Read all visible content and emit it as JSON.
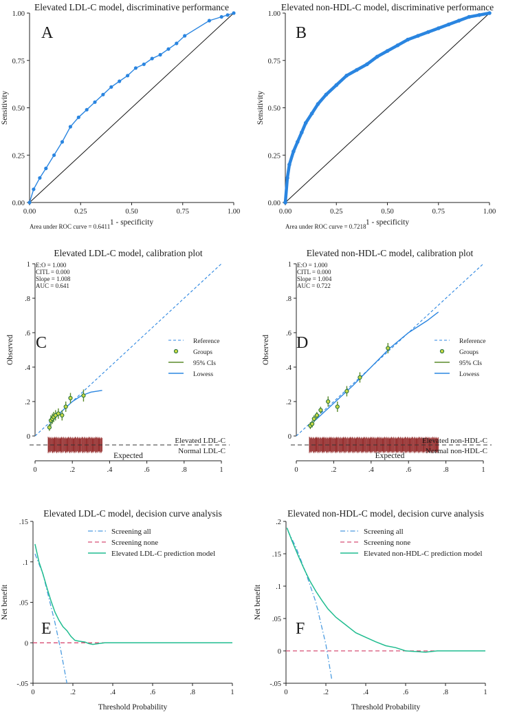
{
  "chart_data": [
    {
      "type": "line",
      "panel_letter": "A",
      "title": "Elevated LDL-C model, discriminative performance",
      "xlabel": "1 - specificity",
      "ylabel": "Sensitivity",
      "xlim": [
        0,
        1
      ],
      "ylim": [
        0,
        1
      ],
      "xticks": [
        "0.00",
        "0.25",
        "0.50",
        "0.75",
        "1.00"
      ],
      "yticks": [
        "0.00",
        "0.25",
        "0.50",
        "0.75",
        "1.00"
      ],
      "footnote": "Area under ROC curve = 0.6411",
      "color": "#2a85e0",
      "series": [
        {
          "name": "ROC curve",
          "x": [
            0,
            0.02,
            0.05,
            0.08,
            0.12,
            0.16,
            0.2,
            0.24,
            0.28,
            0.32,
            0.36,
            0.4,
            0.44,
            0.48,
            0.52,
            0.56,
            0.6,
            0.64,
            0.68,
            0.72,
            0.76,
            0.88,
            0.94,
            0.97,
            1
          ],
          "y": [
            0,
            0.07,
            0.13,
            0.18,
            0.25,
            0.32,
            0.4,
            0.45,
            0.49,
            0.53,
            0.57,
            0.61,
            0.64,
            0.67,
            0.71,
            0.73,
            0.76,
            0.78,
            0.81,
            0.84,
            0.88,
            0.96,
            0.98,
            0.99,
            1
          ]
        },
        {
          "name": "Reference",
          "x": [
            0,
            1
          ],
          "y": [
            0,
            1
          ]
        }
      ]
    },
    {
      "type": "line",
      "panel_letter": "B",
      "title": "Elevated non-HDL-C model, discriminative performance",
      "xlabel": "1 - specificity",
      "ylabel": "Sensitivity",
      "xlim": [
        0,
        1
      ],
      "ylim": [
        0,
        1
      ],
      "xticks": [
        "0.00",
        "0.25",
        "0.50",
        "0.75",
        "1.00"
      ],
      "yticks": [
        "0.00",
        "0.25",
        "0.50",
        "0.75",
        "1.00"
      ],
      "footnote": "Area under ROC curve = 0.7218",
      "color": "#2a85e0",
      "series": [
        {
          "name": "ROC curve",
          "x": [
            0,
            0.01,
            0.02,
            0.04,
            0.06,
            0.08,
            0.1,
            0.13,
            0.16,
            0.2,
            0.25,
            0.3,
            0.35,
            0.4,
            0.45,
            0.5,
            0.55,
            0.6,
            0.65,
            0.7,
            0.75,
            0.8,
            0.85,
            0.9,
            0.95,
            1
          ],
          "y": [
            0,
            0.13,
            0.2,
            0.27,
            0.32,
            0.37,
            0.42,
            0.47,
            0.52,
            0.57,
            0.62,
            0.67,
            0.7,
            0.73,
            0.77,
            0.8,
            0.83,
            0.86,
            0.88,
            0.9,
            0.92,
            0.94,
            0.96,
            0.98,
            0.99,
            1
          ]
        },
        {
          "name": "Reference",
          "x": [
            0,
            1
          ],
          "y": [
            0,
            1
          ]
        }
      ]
    },
    {
      "type": "scatter",
      "panel_letter": "C",
      "title": "Elevated LDL-C model, calibration plot",
      "xlabel": "Expected",
      "ylabel": "Observed",
      "xlim": [
        0,
        1
      ],
      "ylim": [
        0,
        1
      ],
      "xticks": [
        "0",
        ".2",
        ".4",
        ".6",
        ".8",
        "1"
      ],
      "yticks": [
        "0",
        ".2",
        ".4",
        ".6",
        ".8",
        "1"
      ],
      "stats": [
        "E:O = 1.000",
        "CITL = 0.000",
        "Slope = 1.008",
        "AUC = 0.641"
      ],
      "legend": [
        "Reference",
        "Groups",
        "95% CIs",
        "Lowess"
      ],
      "rug_labels": [
        "Elevated LDL-C",
        "Normal LDL-C"
      ],
      "rug_range": [
        0.07,
        0.36
      ],
      "groups": {
        "x": [
          0.077,
          0.085,
          0.093,
          0.1,
          0.11,
          0.125,
          0.145,
          0.165,
          0.19,
          0.26
        ],
        "y": [
          0.05,
          0.09,
          0.1,
          0.11,
          0.12,
          0.13,
          0.12,
          0.17,
          0.22,
          0.235
        ],
        "ci_low": [
          0.03,
          0.06,
          0.07,
          0.08,
          0.09,
          0.1,
          0.09,
          0.14,
          0.19,
          0.2
        ],
        "ci_high": [
          0.07,
          0.12,
          0.13,
          0.14,
          0.15,
          0.16,
          0.15,
          0.2,
          0.25,
          0.27
        ]
      },
      "series": [
        {
          "name": "Reference",
          "x": [
            0,
            1
          ],
          "y": [
            0,
            1
          ]
        },
        {
          "name": "Lowess",
          "x": [
            0.075,
            0.1,
            0.13,
            0.16,
            0.2,
            0.25,
            0.3,
            0.36
          ],
          "y": [
            0.06,
            0.095,
            0.13,
            0.16,
            0.2,
            0.235,
            0.255,
            0.265
          ]
        }
      ]
    },
    {
      "type": "scatter",
      "panel_letter": "D",
      "title": "Elevated non-HDL-C model, calibration plot",
      "xlabel": "Expected",
      "ylabel": "Observed",
      "xlim": [
        0,
        1
      ],
      "ylim": [
        0,
        1
      ],
      "xticks": [
        "0",
        ".2",
        ".4",
        ".6",
        ".8",
        "1"
      ],
      "yticks": [
        "0",
        ".2",
        ".4",
        ".6",
        ".8",
        "1"
      ],
      "stats": [
        "E:O = 1.000",
        "CITL = 0.000",
        "Slope = 1.004",
        "AUC = 0.722"
      ],
      "legend": [
        "Reference",
        "Groups",
        "95% CIs",
        "Lowess"
      ],
      "rug_labels": [
        "Elevated non-HDL-C",
        "Normal non-HDL-C"
      ],
      "rug_range": [
        0.07,
        0.76
      ],
      "groups": {
        "x": [
          0.075,
          0.085,
          0.095,
          0.11,
          0.13,
          0.17,
          0.22,
          0.27,
          0.34,
          0.49
        ],
        "y": [
          0.06,
          0.07,
          0.1,
          0.12,
          0.15,
          0.2,
          0.17,
          0.26,
          0.34,
          0.51
        ],
        "ci_low": [
          0.04,
          0.05,
          0.08,
          0.1,
          0.13,
          0.17,
          0.14,
          0.23,
          0.31,
          0.48
        ],
        "ci_high": [
          0.08,
          0.09,
          0.12,
          0.14,
          0.17,
          0.23,
          0.2,
          0.29,
          0.37,
          0.54
        ]
      },
      "series": [
        {
          "name": "Reference",
          "x": [
            0,
            1
          ],
          "y": [
            0,
            1
          ]
        },
        {
          "name": "Lowess",
          "x": [
            0.07,
            0.1,
            0.15,
            0.2,
            0.3,
            0.4,
            0.5,
            0.6,
            0.7,
            0.76
          ],
          "y": [
            0.06,
            0.09,
            0.14,
            0.19,
            0.29,
            0.4,
            0.51,
            0.6,
            0.67,
            0.72
          ]
        }
      ]
    },
    {
      "type": "line",
      "panel_letter": "E",
      "title": "Elevated LDL-C model, decision curve analysis",
      "xlabel": "Threshold Probability",
      "ylabel": "Net benefit",
      "xlim": [
        0,
        1
      ],
      "ylim": [
        -0.05,
        0.15
      ],
      "xticks": [
        "0",
        ".2",
        ".4",
        ".6",
        ".8",
        "1"
      ],
      "yticks": [
        "-.05",
        "0",
        ".05",
        ".1",
        ".15"
      ],
      "legend": [
        "Screening all",
        "Screening none",
        "Elevated LDL-C prediction model"
      ],
      "series": [
        {
          "name": "Screening all",
          "x": [
            0.01,
            0.05,
            0.08,
            0.11,
            0.14,
            0.17
          ],
          "y": [
            0.11,
            0.085,
            0.055,
            0.025,
            -0.01,
            -0.05
          ]
        },
        {
          "name": "Screening none",
          "x": [
            0,
            0.36
          ],
          "y": [
            0,
            0
          ]
        },
        {
          "name": "Elevated LDL-C prediction model",
          "x": [
            0.01,
            0.03,
            0.05,
            0.07,
            0.09,
            0.11,
            0.13,
            0.15,
            0.17,
            0.19,
            0.21,
            0.23,
            0.26,
            0.28,
            0.3,
            0.33,
            0.36,
            1
          ],
          "y": [
            0.122,
            0.1,
            0.085,
            0.068,
            0.052,
            0.038,
            0.028,
            0.02,
            0.015,
            0.008,
            0.003,
            0.002,
            0.001,
            -0.001,
            -0.002,
            -0.001,
            0,
            0
          ]
        }
      ]
    },
    {
      "type": "line",
      "panel_letter": "F",
      "title": "Elevated non-HDL-C model, decision curve analysis",
      "xlabel": "Threshold Probability",
      "ylabel": "Net benefit",
      "xlim": [
        0,
        1
      ],
      "ylim": [
        -0.05,
        0.2
      ],
      "xticks": [
        "0",
        ".2",
        ".4",
        ".6",
        ".8",
        "1"
      ],
      "yticks": [
        "-.05",
        "0",
        ".05",
        ".1",
        ".15",
        ".2"
      ],
      "legend": [
        "Screening all",
        "Screening none",
        "Elevated non-HDL-C prediction model"
      ],
      "series": [
        {
          "name": "Screening all",
          "x": [
            0.01,
            0.05,
            0.1,
            0.15,
            0.2,
            0.23
          ],
          "y": [
            0.185,
            0.16,
            0.12,
            0.075,
            0.01,
            -0.045
          ]
        },
        {
          "name": "Screening none",
          "x": [
            0,
            0.76
          ],
          "y": [
            0,
            0
          ]
        },
        {
          "name": "Elevated non-HDL-C prediction model",
          "x": [
            0.005,
            0.03,
            0.06,
            0.09,
            0.12,
            0.15,
            0.18,
            0.21,
            0.25,
            0.3,
            0.35,
            0.4,
            0.45,
            0.5,
            0.55,
            0.6,
            0.7,
            0.76,
            1
          ],
          "y": [
            0.19,
            0.17,
            0.148,
            0.127,
            0.108,
            0.092,
            0.078,
            0.065,
            0.052,
            0.04,
            0.028,
            0.021,
            0.014,
            0.008,
            0.005,
            0,
            -0.002,
            0,
            0
          ]
        }
      ]
    }
  ]
}
